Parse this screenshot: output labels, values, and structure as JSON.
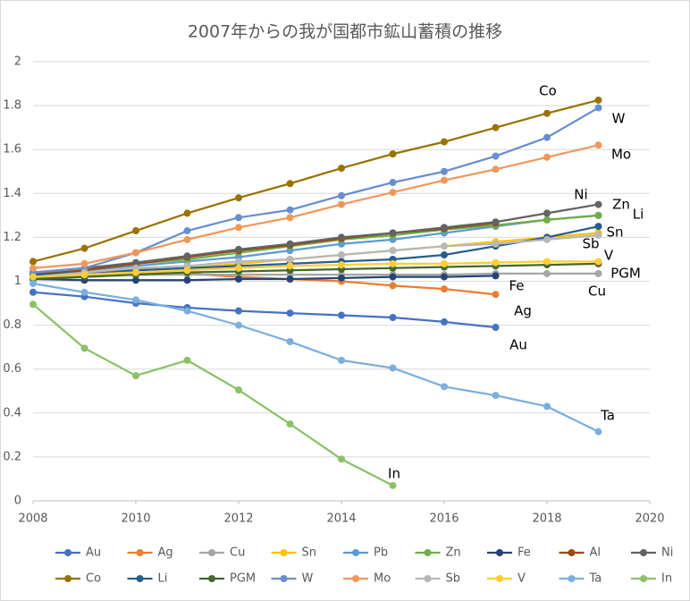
{
  "chart_data": {
    "type": "line",
    "title": "2007年からの我が国都市鉱山蓄積の推移",
    "x": [
      2008,
      2009,
      2010,
      2011,
      2012,
      2013,
      2014,
      2015,
      2016,
      2017,
      2018,
      2019
    ],
    "xlim": [
      2008,
      2020
    ],
    "xticks": [
      2008,
      2010,
      2012,
      2014,
      2016,
      2018,
      2020
    ],
    "ylim": [
      0,
      2
    ],
    "yticks": [
      0,
      0.2,
      0.4,
      0.6,
      0.8,
      1,
      1.2,
      1.4,
      1.6,
      1.8,
      2
    ],
    "grid": true,
    "legend": "bottom",
    "series": [
      {
        "name": "Au",
        "color": "#4472c4",
        "values": [
          0.95,
          0.93,
          0.9,
          0.88,
          0.865,
          0.855,
          0.845,
          0.835,
          0.815,
          0.79,
          null,
          null
        ]
      },
      {
        "name": "Ag",
        "color": "#ed7d31",
        "values": [
          1.04,
          1.04,
          1.04,
          1.035,
          1.02,
          1.01,
          1.0,
          0.98,
          0.965,
          0.94,
          null,
          null
        ]
      },
      {
        "name": "Cu",
        "color": "#a5a5a5",
        "values": [
          1.02,
          1.025,
          1.03,
          1.03,
          1.03,
          1.03,
          1.03,
          1.03,
          1.03,
          1.035,
          1.035,
          1.035
        ]
      },
      {
        "name": "Sn",
        "color": "#ffc000",
        "values": [
          1.02,
          1.03,
          1.05,
          1.06,
          1.08,
          1.1,
          1.12,
          1.14,
          1.16,
          1.18,
          1.2,
          1.22
        ]
      },
      {
        "name": "Pb",
        "color": "#5b9bd5",
        "values": [
          1.03,
          1.05,
          1.07,
          1.09,
          1.11,
          1.14,
          1.17,
          1.19,
          1.22,
          1.25,
          1.28,
          1.3
        ]
      },
      {
        "name": "Zn",
        "color": "#70ad47",
        "values": [
          1.03,
          1.05,
          1.08,
          1.1,
          1.13,
          1.16,
          1.19,
          1.21,
          1.235,
          1.255,
          1.28,
          1.3
        ]
      },
      {
        "name": "Fe",
        "color": "#264478",
        "values": [
          1.01,
          1.005,
          1.005,
          1.005,
          1.01,
          1.01,
          1.015,
          1.02,
          1.02,
          1.025,
          null,
          null
        ]
      },
      {
        "name": "Al",
        "color": "#9e480e",
        "values": [
          1.03,
          1.05,
          1.08,
          1.11,
          1.14,
          1.165,
          1.195,
          1.22,
          1.24,
          1.265,
          null,
          null
        ]
      },
      {
        "name": "Ni",
        "color": "#636363",
        "values": [
          1.04,
          1.06,
          1.085,
          1.115,
          1.145,
          1.17,
          1.2,
          1.22,
          1.245,
          1.27,
          1.31,
          1.35
        ]
      },
      {
        "name": "Co",
        "color": "#997300",
        "values": [
          1.09,
          1.15,
          1.23,
          1.31,
          1.38,
          1.445,
          1.515,
          1.58,
          1.635,
          1.7,
          1.765,
          1.825
        ]
      },
      {
        "name": "Li",
        "color": "#255e91",
        "values": [
          1.03,
          1.04,
          1.05,
          1.06,
          1.07,
          1.08,
          1.09,
          1.1,
          1.12,
          1.16,
          1.2,
          1.25
        ]
      },
      {
        "name": "PGM",
        "color": "#43682b",
        "values": [
          1.01,
          1.02,
          1.03,
          1.04,
          1.045,
          1.05,
          1.055,
          1.06,
          1.065,
          1.07,
          1.075,
          1.08
        ]
      },
      {
        "name": "W",
        "color": "#698ed0",
        "values": [
          1.04,
          1.06,
          1.13,
          1.23,
          1.29,
          1.325,
          1.39,
          1.45,
          1.5,
          1.57,
          1.655,
          1.79
        ]
      },
      {
        "name": "Mo",
        "color": "#f1975a",
        "values": [
          1.06,
          1.08,
          1.13,
          1.19,
          1.245,
          1.29,
          1.35,
          1.405,
          1.46,
          1.51,
          1.565,
          1.62
        ]
      },
      {
        "name": "Sb",
        "color": "#b7b7b7",
        "values": [
          1.02,
          1.04,
          1.06,
          1.07,
          1.09,
          1.1,
          1.12,
          1.14,
          1.16,
          1.17,
          1.19,
          1.21
        ]
      },
      {
        "name": "V",
        "color": "#ffcd33",
        "values": [
          1.02,
          1.03,
          1.04,
          1.05,
          1.06,
          1.07,
          1.075,
          1.08,
          1.08,
          1.085,
          1.09,
          1.09
        ]
      },
      {
        "name": "Ta",
        "color": "#7cafdd",
        "values": [
          0.99,
          0.95,
          0.915,
          0.865,
          0.8,
          0.725,
          0.64,
          0.605,
          0.52,
          0.48,
          0.43,
          0.315
        ]
      },
      {
        "name": "In",
        "color": "#8cc168",
        "values": [
          0.895,
          0.695,
          0.57,
          0.64,
          0.505,
          0.35,
          0.19,
          0.07,
          null,
          null,
          null,
          null
        ]
      }
    ],
    "annotations": [
      "Co",
      "W",
      "Mo",
      "Ni",
      "Zn",
      "Li",
      "Sn",
      "Sb",
      "V",
      "PGM",
      "Fe",
      "Cu",
      "Ag",
      "Au",
      "Ta",
      "In"
    ]
  }
}
